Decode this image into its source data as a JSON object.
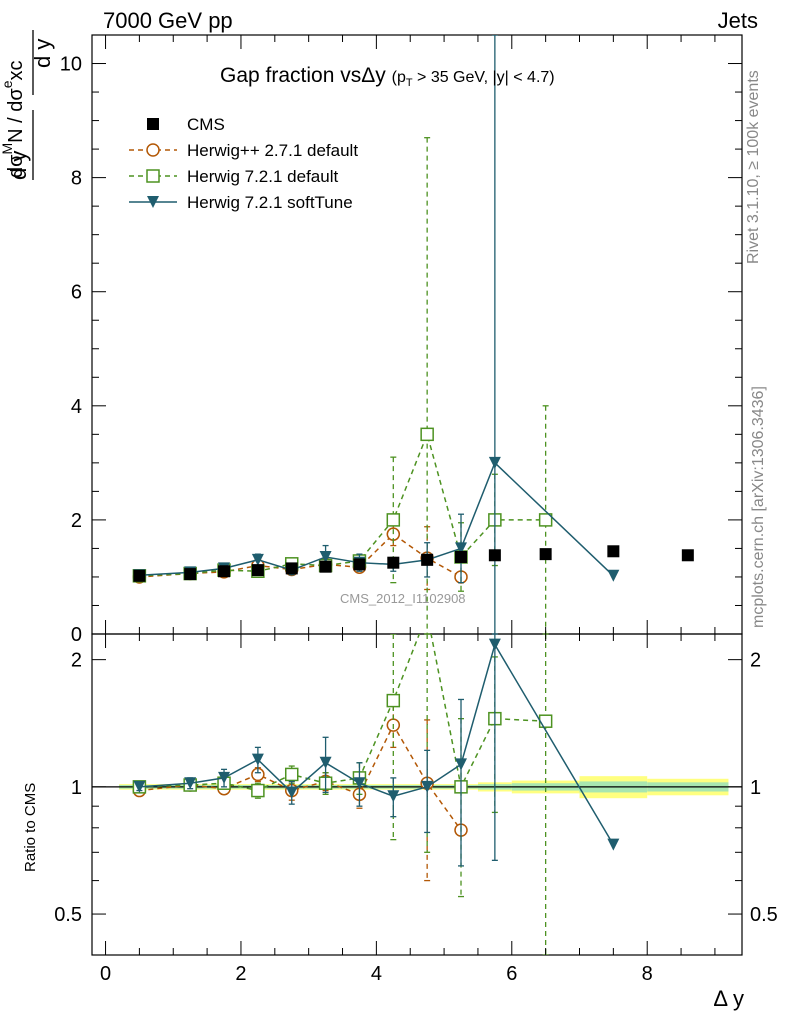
{
  "header": {
    "left": "7000 GeV pp",
    "right": "Jets"
  },
  "side_labels": {
    "rivet": "Rivet 3.1.10, ≥ 100k events",
    "mcplots": "mcplots.cern.ch [arXiv:1306.3436]"
  },
  "watermark": "CMS_2012_I1102908",
  "chart_data": {
    "type": "line",
    "title": "Gap fraction vsΔy",
    "subtitle": "(p_T > 35 GeV, |y| < 4.7)",
    "xlabel": "Δ y",
    "ylabel": "dσ^M N / d y / dσ^e xc / d y",
    "ratio_ylabel": "Ratio to CMS",
    "xlim": [
      -0.2,
      9.4
    ],
    "ylim": [
      0,
      10.5
    ],
    "ratio_ylim": [
      0.4,
      2.3
    ],
    "x_ticks": [
      0,
      2,
      4,
      6,
      8
    ],
    "y_ticks": [
      2,
      4,
      6,
      8,
      10
    ],
    "ratio_ticks": [
      0.5,
      1,
      2
    ],
    "legend_position": "top-left",
    "series": [
      {
        "name": "CMS",
        "color": "#000000",
        "marker": "filled-square",
        "x": [
          0.5,
          1.25,
          1.75,
          2.25,
          2.75,
          3.25,
          3.75,
          4.25,
          4.75,
          5.25,
          5.75,
          6.5,
          7.5,
          8.6
        ],
        "y": [
          1.02,
          1.05,
          1.1,
          1.12,
          1.15,
          1.18,
          1.22,
          1.25,
          1.3,
          1.35,
          1.38,
          1.4,
          1.45,
          1.38
        ]
      },
      {
        "name": "Herwig++ 2.7.1 default",
        "color": "#b35806",
        "marker": "open-circle",
        "dash": "5,4",
        "x": [
          0.5,
          1.25,
          1.75,
          2.25,
          2.75,
          3.25,
          3.75,
          4.25,
          4.75,
          5.25
        ],
        "y": [
          1.0,
          1.06,
          1.09,
          1.2,
          1.13,
          1.22,
          1.17,
          1.75,
          1.33,
          1.0
        ],
        "yerr": [
          0.03,
          0.03,
          0.03,
          0.05,
          0.05,
          0.06,
          0.08,
          0.2,
          0.55,
          0.0
        ],
        "ratio": [
          0.98,
          1.01,
          0.99,
          1.07,
          0.98,
          1.03,
          0.96,
          1.4,
          1.02,
          0.79
        ],
        "ratio_err": [
          0.02,
          0.02,
          0.03,
          0.04,
          0.05,
          0.05,
          0.07,
          0.16,
          0.42,
          0.0
        ]
      },
      {
        "name": "Herwig 7.2.1 default",
        "color": "#4d9221",
        "marker": "open-square",
        "dash": "5,4",
        "x": [
          0.5,
          1.25,
          1.75,
          2.25,
          2.75,
          3.25,
          3.75,
          4.25,
          4.75,
          5.25,
          5.75,
          6.5
        ],
        "y": [
          1.02,
          1.06,
          1.12,
          1.1,
          1.23,
          1.2,
          1.28,
          2.0,
          3.5,
          1.35,
          2.0,
          2.0
        ],
        "yerr": [
          0.03,
          0.03,
          0.04,
          0.05,
          0.06,
          0.08,
          0.12,
          1.1,
          5.2,
          0.6,
          0.8,
          2.0
        ],
        "ratio": [
          1.0,
          1.01,
          1.02,
          0.98,
          1.07,
          1.02,
          1.05,
          1.6,
          2.7,
          1.0,
          1.45,
          1.43
        ],
        "ratio_err": [
          0.02,
          0.03,
          0.03,
          0.04,
          0.05,
          0.06,
          0.09,
          0.85,
          2.0,
          0.45,
          0.58,
          1.4
        ]
      },
      {
        "name": "Herwig 7.2.1 softTune",
        "color": "#1f5d6e",
        "marker": "filled-triangle-down",
        "dash": "",
        "x": [
          0.5,
          1.25,
          1.75,
          2.25,
          2.75,
          3.25,
          3.75,
          4.25,
          4.75,
          5.25,
          5.75,
          7.5
        ],
        "y": [
          1.03,
          1.08,
          1.15,
          1.3,
          1.12,
          1.35,
          1.25,
          1.22,
          1.3,
          1.5,
          3.0,
          1.02
        ],
        "yerr": [
          0.03,
          0.04,
          0.06,
          0.1,
          0.08,
          0.2,
          0.15,
          0.12,
          0.3,
          0.6,
          9.0,
          0.0
        ],
        "ratio": [
          1.0,
          1.02,
          1.05,
          1.16,
          0.97,
          1.14,
          1.02,
          0.95,
          1.0,
          1.13,
          2.17,
          0.73
        ],
        "ratio_err": [
          0.02,
          0.03,
          0.05,
          0.08,
          0.06,
          0.17,
          0.12,
          0.1,
          0.22,
          0.48,
          1.5,
          0.0
        ]
      }
    ],
    "data_band": {
      "x": [
        [
          0.2,
          5.5
        ],
        [
          5.5,
          6.0
        ],
        [
          6.0,
          7.0
        ],
        [
          7.0,
          8.0
        ],
        [
          8.0,
          9.2
        ]
      ],
      "inner": [
        0.01,
        0.015,
        0.02,
        0.03,
        0.025
      ],
      "outer": [
        0.015,
        0.025,
        0.035,
        0.06,
        0.045
      ]
    }
  }
}
